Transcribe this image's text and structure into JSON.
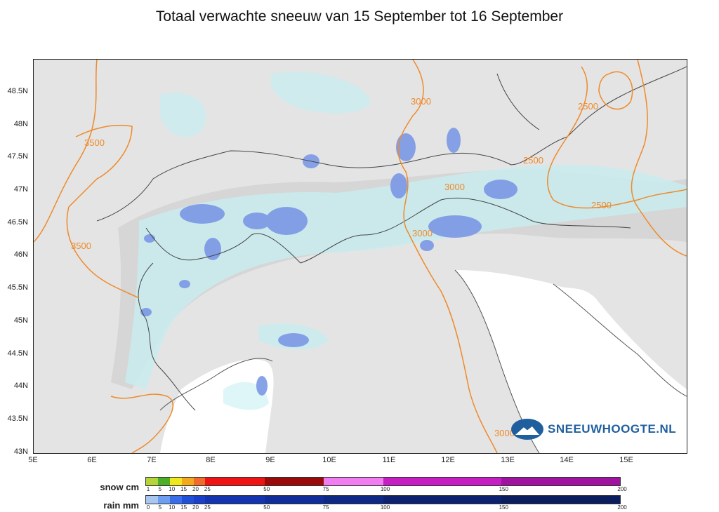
{
  "title": "Totaal verwachte sneeuw van 15 September tot 16 September",
  "map": {
    "x_axis_labels": [
      "5E",
      "6E",
      "7E",
      "8E",
      "9E",
      "10E",
      "11E",
      "12E",
      "13E",
      "14E",
      "15E"
    ],
    "y_axis_labels": [
      "48.5N",
      "48N",
      "47.5N",
      "47N",
      "46.5N",
      "46N",
      "45.5N",
      "45N",
      "44.5N",
      "44N",
      "43.5N",
      "43N"
    ],
    "contour_labels": [
      "3500",
      "3500",
      "3000",
      "3000",
      "3000",
      "2500",
      "2500",
      "2500",
      "3000"
    ]
  },
  "legend": {
    "snow_title": "snow cm",
    "snow_ticks": [
      "1",
      "5",
      "10",
      "15",
      "20",
      "25",
      "50",
      "75",
      "100",
      "150",
      "200"
    ],
    "snow_colors": [
      "#b5d33b",
      "#4caf27",
      "#f0e81f",
      "#f4a81e",
      "#f06c2d",
      "#f01313",
      "#9a0a0a",
      "#f07ef0",
      "#c41ec4",
      "#a013a0",
      "#7a127a"
    ],
    "rain_title": "rain mm",
    "rain_ticks": [
      "0",
      "5",
      "10",
      "15",
      "20",
      "25",
      "50",
      "75",
      "100",
      "150",
      "200"
    ],
    "rain_colors": [
      "#a9c6f0",
      "#6e9ef0",
      "#3a6ee8",
      "#2050d8",
      "#1a3fc8",
      "#1535b0",
      "#102d9a",
      "#0e2886",
      "#0c2270",
      "#0a1d5e",
      "#081a52"
    ]
  },
  "brand": {
    "name": "SNEEUWHOOGTE.NL"
  }
}
